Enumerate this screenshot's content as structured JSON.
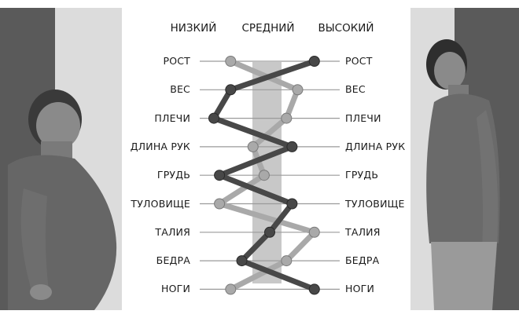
{
  "columns": {
    "low": "НИЗКИЙ",
    "mid": "СРЕДНИЙ",
    "high": "ВЫСОКИЙ"
  },
  "rows": [
    {
      "left": "РОСТ",
      "right": "РОСТ"
    },
    {
      "left": "ВЕС",
      "right": "ВЕС"
    },
    {
      "left": "ПЛЕЧИ",
      "right": "ПЛЕЧИ"
    },
    {
      "left": "ДЛИНА РУК",
      "right": "ДЛИНА РУК"
    },
    {
      "left": "ГРУДЬ",
      "right": "ГРУДЬ"
    },
    {
      "left": "ТУЛОВИЩЕ",
      "right": "ТУЛОВИЩЕ"
    },
    {
      "left": "ТАЛИЯ",
      "right": "ТАЛИЯ"
    },
    {
      "left": "БЕДРА",
      "right": "БЕДРА"
    },
    {
      "left": "НОГИ",
      "right": "НОГИ"
    }
  ],
  "series": [
    {
      "shade": "#a9a9a9",
      "values": [
        0.15,
        0.75,
        0.65,
        0.35,
        0.45,
        0.05,
        0.9,
        0.65,
        0.15
      ]
    },
    {
      "shade": "#484848",
      "values": [
        0.9,
        0.15,
        0.0,
        0.7,
        0.05,
        0.7,
        0.5,
        0.25,
        0.9
      ]
    }
  ],
  "colors": {
    "left_panel_dark": "#5a5a5a",
    "left_panel_light": "#dcdcdc",
    "right_panel_light": "#dcdcdc",
    "right_panel_dark": "#5a5a5a",
    "mid_band": "#c8c8c8",
    "row_line": "#9a9a9a"
  }
}
